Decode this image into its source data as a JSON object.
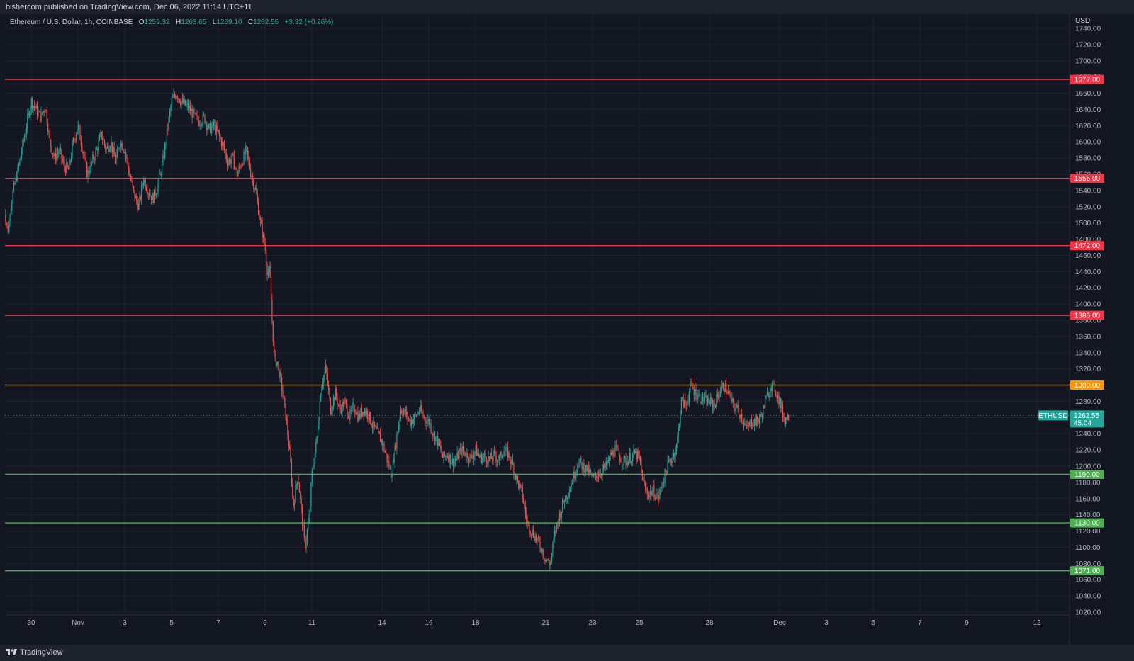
{
  "header": {
    "publisher": "bishercom published on TradingView.com, Dec 06, 2022 11:14 UTC+11"
  },
  "legend": {
    "symbol": "Ethereum / U.S. Dollar, 1h, COINBASE",
    "open_label": "O",
    "open": "1259.32",
    "high_label": "H",
    "high": "1263.65",
    "low_label": "L",
    "low": "1259.10",
    "close_label": "C",
    "close": "1262.55",
    "change": "+3.32 (+0.26%)"
  },
  "footer": {
    "brand": "TradingView",
    "logo_icon": "tradingview-logo-icon"
  },
  "colors": {
    "background": "#131722",
    "up": "#26a69a",
    "down": "#ef5350",
    "resistance": "#f23645",
    "pivot": "#ff9800",
    "support": "#4caf50"
  },
  "chart_data": {
    "type": "candlestick",
    "symbol": "ETHUSD",
    "currency": "USD",
    "ylim": [
      1020,
      1740
    ],
    "y_ticks": [
      1020,
      1040,
      1060,
      1080,
      1100,
      1120,
      1140,
      1160,
      1180,
      1200,
      1220,
      1240,
      1260,
      1280,
      1300,
      1320,
      1340,
      1360,
      1380,
      1400,
      1420,
      1440,
      1460,
      1480,
      1500,
      1520,
      1540,
      1560,
      1580,
      1600,
      1620,
      1640,
      1660,
      1680,
      1700,
      1720,
      1740
    ],
    "x_labels": [
      "30",
      "Nov",
      "3",
      "5",
      "7",
      "9",
      "11",
      "14",
      "16",
      "18",
      "21",
      "23",
      "25",
      "28",
      "Dec",
      "3",
      "5",
      "7",
      "9",
      "12"
    ],
    "x_label_days": [
      -2,
      0,
      2,
      4,
      6,
      8,
      10,
      13,
      15,
      17,
      20,
      22,
      24,
      27,
      30,
      32,
      34,
      36,
      38,
      41
    ],
    "horizontal_levels": [
      {
        "value": 1677.0,
        "label": "1677.00",
        "kind": "resistance"
      },
      {
        "value": 1555.0,
        "label": "1555.00",
        "kind": "resistance"
      },
      {
        "value": 1472.0,
        "label": "1472.00",
        "kind": "resistance"
      },
      {
        "value": 1386.0,
        "label": "1386.00",
        "kind": "resistance"
      },
      {
        "value": 1300.0,
        "label": "1300.00",
        "kind": "pivot"
      },
      {
        "value": 1190.0,
        "label": "1190.00",
        "kind": "support"
      },
      {
        "value": 1130.0,
        "label": "1130.00",
        "kind": "support"
      },
      {
        "value": 1071.0,
        "label": "1071.00",
        "kind": "support"
      }
    ],
    "last_price": {
      "value": 1262.55,
      "label": "1262.55",
      "countdown": "45:04",
      "symbol_tag": "ETHUSD"
    },
    "price_path": [
      [
        -3.2,
        1520
      ],
      [
        -3.0,
        1490
      ],
      [
        -2.8,
        1535
      ],
      [
        -2.6,
        1560
      ],
      [
        -2.4,
        1590
      ],
      [
        -2.2,
        1620
      ],
      [
        -2.0,
        1650
      ],
      [
        -1.8,
        1640
      ],
      [
        -1.6,
        1630
      ],
      [
        -1.4,
        1645
      ],
      [
        -1.2,
        1600
      ],
      [
        -1.0,
        1580
      ],
      [
        -0.8,
        1590
      ],
      [
        -0.6,
        1570
      ],
      [
        -0.4,
        1565
      ],
      [
        -0.2,
        1600
      ],
      [
        0.0,
        1620
      ],
      [
        0.2,
        1590
      ],
      [
        0.4,
        1560
      ],
      [
        0.6,
        1575
      ],
      [
        0.8,
        1590
      ],
      [
        1.0,
        1610
      ],
      [
        1.2,
        1590
      ],
      [
        1.4,
        1600
      ],
      [
        1.6,
        1575
      ],
      [
        1.8,
        1600
      ],
      [
        2.0,
        1590
      ],
      [
        2.2,
        1560
      ],
      [
        2.4,
        1535
      ],
      [
        2.6,
        1520
      ],
      [
        2.8,
        1555
      ],
      [
        3.0,
        1540
      ],
      [
        3.2,
        1530
      ],
      [
        3.4,
        1545
      ],
      [
        3.6,
        1570
      ],
      [
        3.8,
        1610
      ],
      [
        4.0,
        1650
      ],
      [
        4.2,
        1660
      ],
      [
        4.4,
        1650
      ],
      [
        4.6,
        1645
      ],
      [
        4.8,
        1640
      ],
      [
        5.0,
        1630
      ],
      [
        5.2,
        1625
      ],
      [
        5.4,
        1630
      ],
      [
        5.6,
        1615
      ],
      [
        5.8,
        1620
      ],
      [
        6.0,
        1610
      ],
      [
        6.2,
        1595
      ],
      [
        6.4,
        1575
      ],
      [
        6.6,
        1580
      ],
      [
        6.8,
        1560
      ],
      [
        7.0,
        1575
      ],
      [
        7.2,
        1590
      ],
      [
        7.4,
        1560
      ],
      [
        7.6,
        1540
      ],
      [
        7.8,
        1500
      ],
      [
        8.0,
        1470
      ],
      [
        8.1,
        1440
      ],
      [
        8.2,
        1440
      ],
      [
        8.3,
        1380
      ],
      [
        8.4,
        1330
      ],
      [
        8.5,
        1330
      ],
      [
        8.7,
        1300
      ],
      [
        8.9,
        1260
      ],
      [
        9.1,
        1200
      ],
      [
        9.2,
        1150
      ],
      [
        9.4,
        1190
      ],
      [
        9.5,
        1160
      ],
      [
        9.7,
        1100
      ],
      [
        9.9,
        1140
      ],
      [
        10.0,
        1190
      ],
      [
        10.2,
        1230
      ],
      [
        10.4,
        1300
      ],
      [
        10.6,
        1320
      ],
      [
        10.8,
        1270
      ],
      [
        11.0,
        1290
      ],
      [
        11.2,
        1270
      ],
      [
        11.4,
        1280
      ],
      [
        11.6,
        1260
      ],
      [
        11.8,
        1275
      ],
      [
        12.0,
        1260
      ],
      [
        12.2,
        1270
      ],
      [
        12.4,
        1265
      ],
      [
        12.6,
        1250
      ],
      [
        12.8,
        1240
      ],
      [
        13.0,
        1230
      ],
      [
        13.2,
        1210
      ],
      [
        13.4,
        1190
      ],
      [
        13.6,
        1230
      ],
      [
        13.8,
        1270
      ],
      [
        14.0,
        1265
      ],
      [
        14.2,
        1255
      ],
      [
        14.4,
        1260
      ],
      [
        14.6,
        1270
      ],
      [
        14.8,
        1260
      ],
      [
        15.0,
        1255
      ],
      [
        15.2,
        1240
      ],
      [
        15.4,
        1230
      ],
      [
        15.6,
        1210
      ],
      [
        15.8,
        1215
      ],
      [
        16.0,
        1205
      ],
      [
        16.2,
        1210
      ],
      [
        16.4,
        1220
      ],
      [
        16.6,
        1215
      ],
      [
        16.8,
        1210
      ],
      [
        17.0,
        1220
      ],
      [
        17.2,
        1210
      ],
      [
        17.4,
        1212
      ],
      [
        17.6,
        1208
      ],
      [
        17.8,
        1213
      ],
      [
        18.0,
        1209
      ],
      [
        18.2,
        1220
      ],
      [
        18.4,
        1215
      ],
      [
        18.6,
        1200
      ],
      [
        18.8,
        1180
      ],
      [
        19.0,
        1165
      ],
      [
        19.2,
        1130
      ],
      [
        19.4,
        1120
      ],
      [
        19.6,
        1110
      ],
      [
        19.8,
        1100
      ],
      [
        20.0,
        1085
      ],
      [
        20.2,
        1080
      ],
      [
        20.4,
        1120
      ],
      [
        20.6,
        1140
      ],
      [
        20.8,
        1160
      ],
      [
        21.0,
        1170
      ],
      [
        21.2,
        1190
      ],
      [
        21.4,
        1205
      ],
      [
        21.6,
        1200
      ],
      [
        21.8,
        1195
      ],
      [
        22.0,
        1185
      ],
      [
        22.2,
        1190
      ],
      [
        22.4,
        1195
      ],
      [
        22.6,
        1200
      ],
      [
        22.8,
        1215
      ],
      [
        23.0,
        1220
      ],
      [
        23.2,
        1210
      ],
      [
        23.4,
        1205
      ],
      [
        23.6,
        1210
      ],
      [
        23.8,
        1215
      ],
      [
        24.0,
        1210
      ],
      [
        24.2,
        1175
      ],
      [
        24.4,
        1165
      ],
      [
        24.6,
        1170
      ],
      [
        24.8,
        1160
      ],
      [
        25.0,
        1180
      ],
      [
        25.2,
        1200
      ],
      [
        25.4,
        1210
      ],
      [
        25.6,
        1225
      ],
      [
        25.8,
        1280
      ],
      [
        26.0,
        1275
      ],
      [
        26.2,
        1300
      ],
      [
        26.4,
        1290
      ],
      [
        26.6,
        1285
      ],
      [
        26.8,
        1280
      ],
      [
        27.0,
        1280
      ],
      [
        27.2,
        1275
      ],
      [
        27.4,
        1290
      ],
      [
        27.6,
        1300
      ],
      [
        27.8,
        1290
      ],
      [
        28.0,
        1275
      ],
      [
        28.2,
        1270
      ],
      [
        28.4,
        1260
      ],
      [
        28.6,
        1245
      ],
      [
        28.8,
        1255
      ],
      [
        29.0,
        1255
      ],
      [
        29.2,
        1260
      ],
      [
        29.4,
        1280
      ],
      [
        29.6,
        1300
      ],
      [
        29.8,
        1295
      ],
      [
        30.0,
        1280
      ],
      [
        30.2,
        1258
      ],
      [
        30.4,
        1262
      ]
    ]
  }
}
